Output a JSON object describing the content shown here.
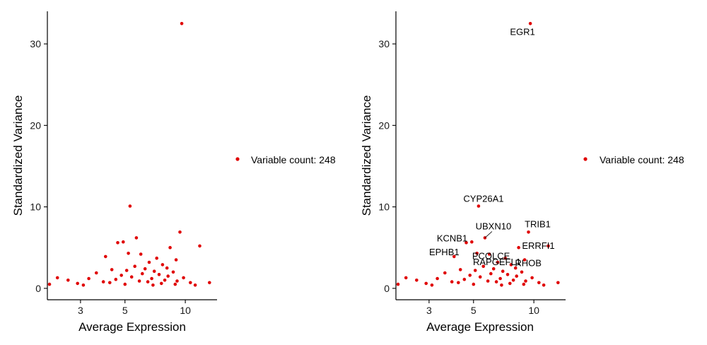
{
  "chart_data": [
    {
      "type": "scatter",
      "panel": "left",
      "xlabel": "Average Expression",
      "ylabel": "Standardized Variance",
      "x_scale": "log",
      "xlim": [
        2.05,
        14.4
      ],
      "ylim": [
        -1.4,
        34
      ],
      "x_ticks": [
        3,
        5,
        10
      ],
      "y_ticks": [
        0,
        10,
        20,
        30
      ],
      "grid": false,
      "legend": {
        "label": "Variable count: 248",
        "position": "right",
        "color": "#e00000"
      },
      "highlight_color": "#e00000",
      "points": [
        [
          9.6,
          32.5
        ],
        [
          5.3,
          10.1
        ],
        [
          9.4,
          6.9
        ],
        [
          5.7,
          6.2
        ],
        [
          4.9,
          5.7
        ],
        [
          4.6,
          5.6
        ],
        [
          11.8,
          5.2
        ],
        [
          8.4,
          5.0
        ],
        [
          5.2,
          4.3
        ],
        [
          6.0,
          4.2
        ],
        [
          4.0,
          3.9
        ],
        [
          7.2,
          3.7
        ],
        [
          9.0,
          3.5
        ],
        [
          6.6,
          3.2
        ],
        [
          7.7,
          2.9
        ],
        [
          5.6,
          2.7
        ],
        [
          8.1,
          2.5
        ],
        [
          6.3,
          2.4
        ],
        [
          4.3,
          2.3
        ],
        [
          5.1,
          2.2
        ],
        [
          7.0,
          2.1
        ],
        [
          8.7,
          2.0
        ],
        [
          3.6,
          1.9
        ],
        [
          6.1,
          1.8
        ],
        [
          7.4,
          1.7
        ],
        [
          4.8,
          1.6
        ],
        [
          8.2,
          1.5
        ],
        [
          5.4,
          1.4
        ],
        [
          9.8,
          1.3
        ],
        [
          2.3,
          1.3
        ],
        [
          6.8,
          1.2
        ],
        [
          3.3,
          1.2
        ],
        [
          4.5,
          1.1
        ],
        [
          7.9,
          1.0
        ],
        [
          2.6,
          1.0
        ],
        [
          5.9,
          0.9
        ],
        [
          9.1,
          0.9
        ],
        [
          3.9,
          0.8
        ],
        [
          6.5,
          0.8
        ],
        [
          10.6,
          0.7
        ],
        [
          4.2,
          0.7
        ],
        [
          2.9,
          0.6
        ],
        [
          7.6,
          0.6
        ],
        [
          5.0,
          0.5
        ],
        [
          8.9,
          0.5
        ],
        [
          13.2,
          0.7
        ],
        [
          11.2,
          0.4
        ],
        [
          2.1,
          0.5
        ],
        [
          3.1,
          0.4
        ],
        [
          6.9,
          0.4
        ]
      ]
    },
    {
      "type": "scatter",
      "panel": "right",
      "xlabel": "Average Expression",
      "ylabel": "Standardized Variance",
      "x_scale": "log",
      "xlim": [
        2.05,
        14.4
      ],
      "ylim": [
        -1.4,
        34
      ],
      "x_ticks": [
        3,
        5,
        10
      ],
      "y_ticks": [
        0,
        10,
        20,
        30
      ],
      "grid": false,
      "legend": {
        "label": "Variable count: 248",
        "position": "right",
        "color": "#e00000"
      },
      "highlight_color": "#e00000",
      "points": [
        [
          9.6,
          32.5
        ],
        [
          5.3,
          10.1
        ],
        [
          9.4,
          6.9
        ],
        [
          5.7,
          6.2
        ],
        [
          4.9,
          5.7
        ],
        [
          4.6,
          5.6
        ],
        [
          11.8,
          5.2
        ],
        [
          8.4,
          5.0
        ],
        [
          5.2,
          4.3
        ],
        [
          6.0,
          4.2
        ],
        [
          4.0,
          3.9
        ],
        [
          7.2,
          3.7
        ],
        [
          9.0,
          3.5
        ],
        [
          6.6,
          3.2
        ],
        [
          7.7,
          2.9
        ],
        [
          5.6,
          2.7
        ],
        [
          8.1,
          2.5
        ],
        [
          6.3,
          2.4
        ],
        [
          4.3,
          2.3
        ],
        [
          5.1,
          2.2
        ],
        [
          7.0,
          2.1
        ],
        [
          8.7,
          2.0
        ],
        [
          3.6,
          1.9
        ],
        [
          6.1,
          1.8
        ],
        [
          7.4,
          1.7
        ],
        [
          4.8,
          1.6
        ],
        [
          8.2,
          1.5
        ],
        [
          5.4,
          1.4
        ],
        [
          9.8,
          1.3
        ],
        [
          2.3,
          1.3
        ],
        [
          6.8,
          1.2
        ],
        [
          3.3,
          1.2
        ],
        [
          4.5,
          1.1
        ],
        [
          7.9,
          1.0
        ],
        [
          2.6,
          1.0
        ],
        [
          5.9,
          0.9
        ],
        [
          9.1,
          0.9
        ],
        [
          3.9,
          0.8
        ],
        [
          6.5,
          0.8
        ],
        [
          10.6,
          0.7
        ],
        [
          4.2,
          0.7
        ],
        [
          2.9,
          0.6
        ],
        [
          7.6,
          0.6
        ],
        [
          5.0,
          0.5
        ],
        [
          8.9,
          0.5
        ],
        [
          13.2,
          0.7
        ],
        [
          11.2,
          0.4
        ],
        [
          2.1,
          0.5
        ],
        [
          3.1,
          0.4
        ],
        [
          6.9,
          0.4
        ]
      ],
      "annotations": [
        {
          "label": "EGR1",
          "x": 9.6,
          "y": 32.5
        },
        {
          "label": "CYP26A1",
          "x": 5.3,
          "y": 10.1
        },
        {
          "label": "UBXN10",
          "x": 5.7,
          "y": 6.2
        },
        {
          "label": "TRIB1",
          "x": 9.4,
          "y": 6.9
        },
        {
          "label": "KCNB1",
          "x": 4.6,
          "y": 5.6
        },
        {
          "label": "PCOLCE",
          "x": 5.2,
          "y": 4.3
        },
        {
          "label": "ERRFI1",
          "x": 11.8,
          "y": 5.2
        },
        {
          "label": "EPHB1",
          "x": 4.0,
          "y": 3.9
        },
        {
          "label": "RAPGEFL1",
          "x": 6.6,
          "y": 3.2
        },
        {
          "label": "RHOB",
          "x": 9.0,
          "y": 3.5
        }
      ]
    }
  ]
}
